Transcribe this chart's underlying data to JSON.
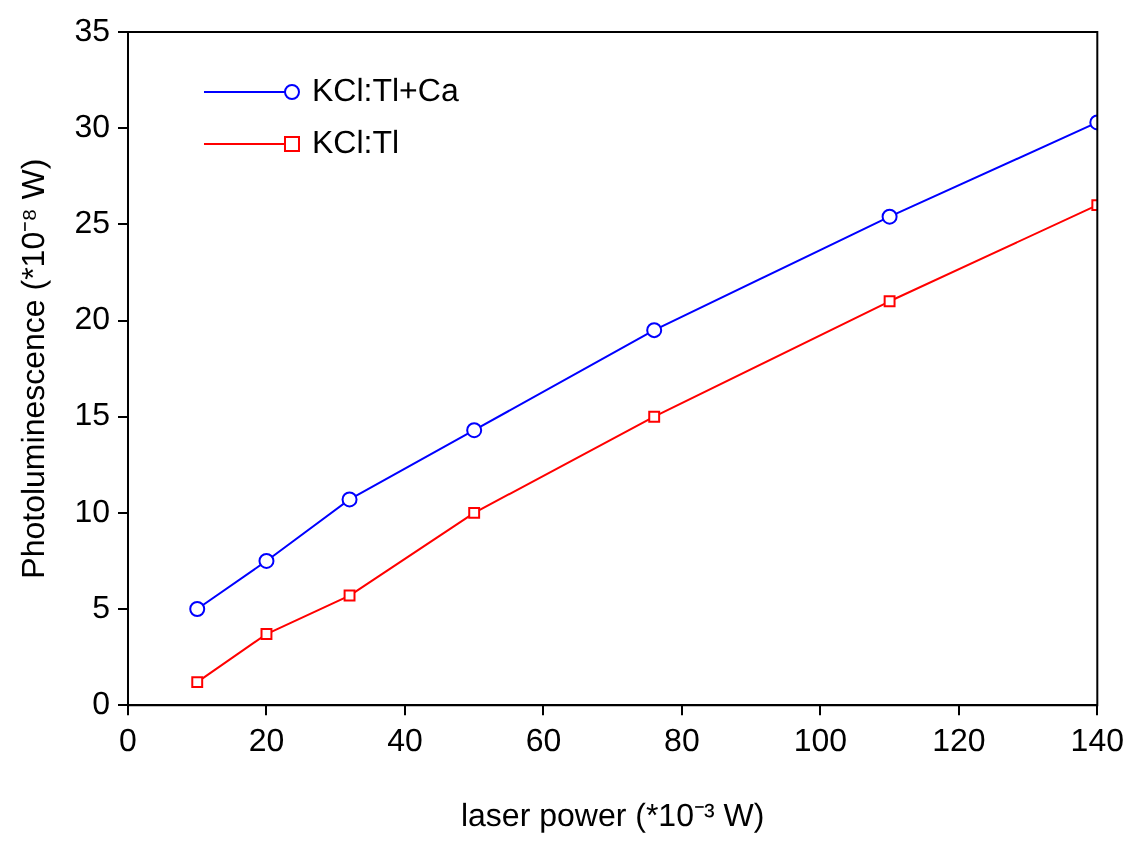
{
  "chart_data": {
    "type": "line",
    "xlabel": "laser power (*10⁻³ W)",
    "ylabel": "Photoluminescence (*10⁻⁸ W)",
    "x": [
      10,
      20,
      32,
      50,
      76,
      110,
      140
    ],
    "series": [
      {
        "name": "KCl:Tl+Ca",
        "color": "#0000ff",
        "marker": "circle",
        "values": [
          5,
          7.5,
          10.7,
          14.3,
          19.5,
          25.4,
          30.3
        ]
      },
      {
        "name": "KCl:Tl",
        "color": "#ff0000",
        "marker": "square",
        "values": [
          1.2,
          3.7,
          5.7,
          10,
          15,
          21,
          26
        ]
      }
    ],
    "xlim": [
      0,
      140
    ],
    "xticks": [
      0,
      20,
      40,
      60,
      80,
      100,
      120,
      140
    ],
    "ylim": [
      0,
      35
    ],
    "yticks": [
      0,
      5,
      10,
      15,
      20,
      25,
      30,
      35
    ],
    "grid": false,
    "legend": "top left",
    "line_style": "solid"
  }
}
